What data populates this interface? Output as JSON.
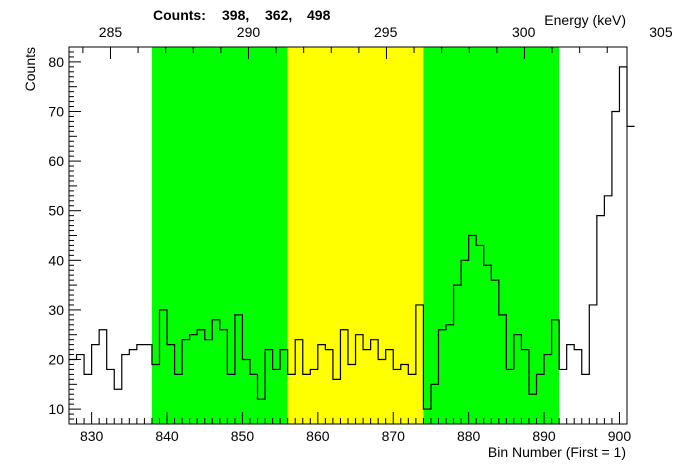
{
  "chart_data": {
    "type": "line",
    "style": "step-histogram",
    "header": {
      "counts_label": "Counts:",
      "counts_values": [
        "398,",
        "362,",
        "498"
      ]
    },
    "xlabel": "Bin Number (First = 1)",
    "ylabel": "Counts",
    "top_axis_label": "Energy (keV)",
    "xlim": [
      827,
      901
    ],
    "ylim": [
      7,
      83
    ],
    "x_ticks": [
      830,
      840,
      850,
      860,
      870,
      880,
      890,
      900
    ],
    "y_ticks": [
      10,
      20,
      30,
      40,
      50,
      60,
      70,
      80
    ],
    "top_ticks": [
      {
        "bin": 832.5,
        "label": "285"
      },
      {
        "bin": 850.8,
        "label": "290"
      },
      {
        "bin": 869.0,
        "label": "295"
      },
      {
        "bin": 887.3,
        "label": "300"
      },
      {
        "bin": 905.5,
        "label": "305"
      }
    ],
    "regions": [
      {
        "name": "left background",
        "from": 838,
        "to": 856,
        "color": "#00ff00"
      },
      {
        "name": "peak",
        "from": 856,
        "to": 874,
        "color": "#ffff00"
      },
      {
        "name": "right background",
        "from": 874,
        "to": 892,
        "color": "#00ff00"
      }
    ],
    "bin_width": 1,
    "bin_start": 827,
    "values": [
      20,
      21,
      17,
      23,
      26,
      18,
      14,
      21,
      22,
      23,
      23,
      19,
      30,
      23,
      17,
      24,
      25,
      26,
      24,
      28,
      26,
      17,
      29,
      20,
      17,
      12,
      22,
      18,
      22,
      17,
      24,
      17,
      18,
      23,
      22,
      16,
      26,
      19,
      25,
      22,
      24,
      20,
      22,
      18,
      19,
      17,
      31,
      10,
      15,
      26,
      27,
      35,
      40,
      45,
      43,
      39,
      36,
      29,
      18,
      25,
      22,
      13,
      17,
      21,
      28,
      18,
      23,
      22,
      17,
      31,
      49,
      53,
      70,
      79,
      67
    ]
  }
}
